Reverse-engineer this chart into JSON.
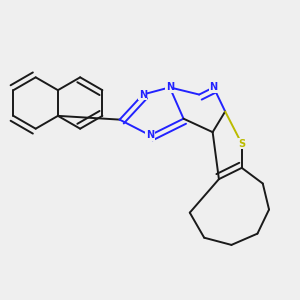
{
  "bg_color": "#efefef",
  "bond_color": "#1a1a1a",
  "N_color": "#2222ff",
  "S_color": "#bbbb00",
  "lw": 1.4,
  "dbo": 0.018,
  "fs": 7.0,
  "figsize": [
    3.0,
    3.0
  ],
  "dpi": 100,
  "xlim": [
    0.03,
    0.97
  ],
  "ylim": [
    0.05,
    0.95
  ]
}
